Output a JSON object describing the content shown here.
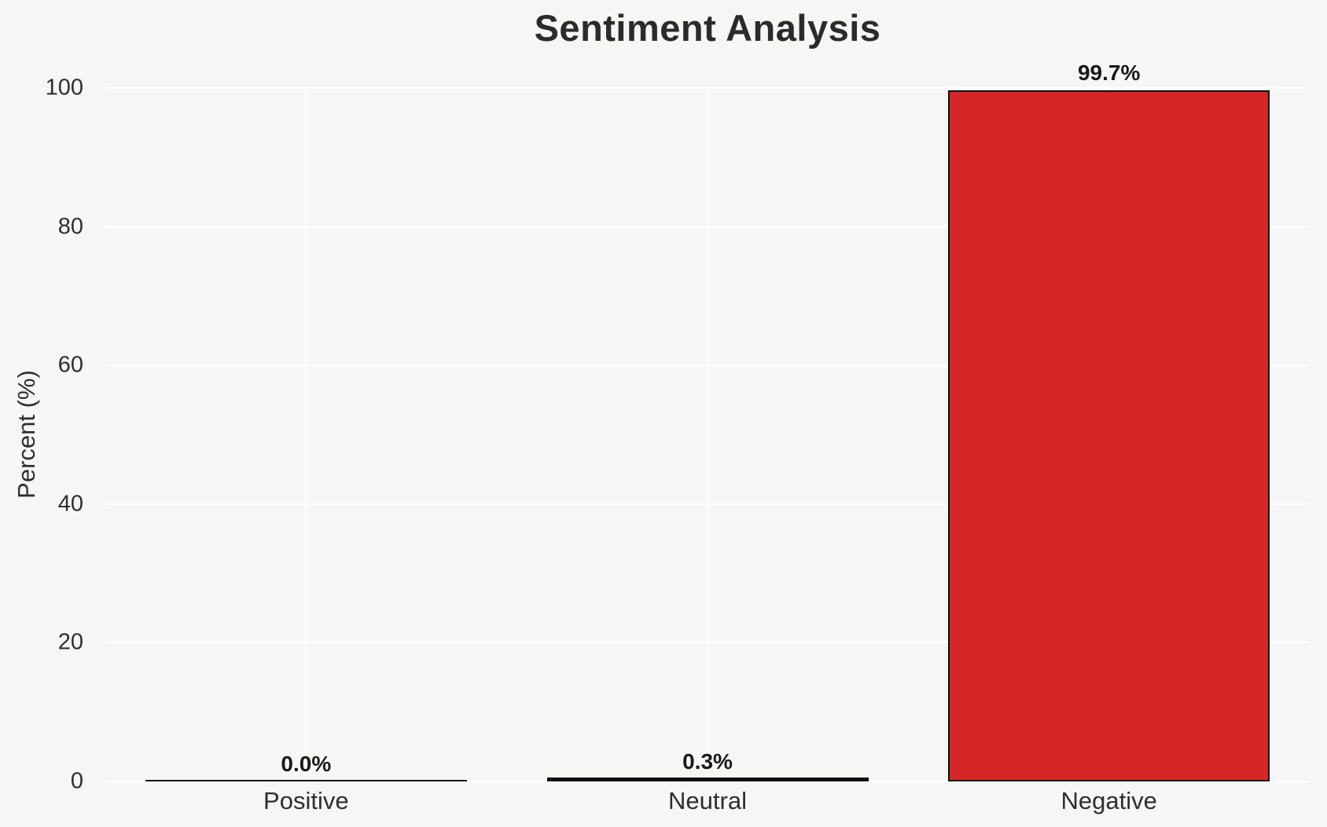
{
  "chart_data": {
    "type": "bar",
    "title": "Sentiment Analysis",
    "xlabel": "",
    "ylabel": "Percent (%)",
    "categories": [
      "Positive",
      "Neutral",
      "Negative"
    ],
    "values": [
      0.0,
      0.3,
      99.7
    ],
    "value_labels": [
      "0.0%",
      "0.3%",
      "99.7%"
    ],
    "bar_colors": [
      null,
      null,
      "#d62728"
    ],
    "bar_edge_color": "#101010",
    "ylim": [
      0,
      100
    ],
    "yticks": [
      0,
      20,
      40,
      60,
      80,
      100
    ],
    "ytick_labels": [
      "0",
      "20",
      "40",
      "60",
      "80",
      "100"
    ],
    "grid": true,
    "grid_color": "#ffffff",
    "legend": "none",
    "background_color": "#f6f6f4",
    "title_color": "#2b2b2b",
    "text_color": "#2e2e2e",
    "value_label_color": "#191919"
  }
}
